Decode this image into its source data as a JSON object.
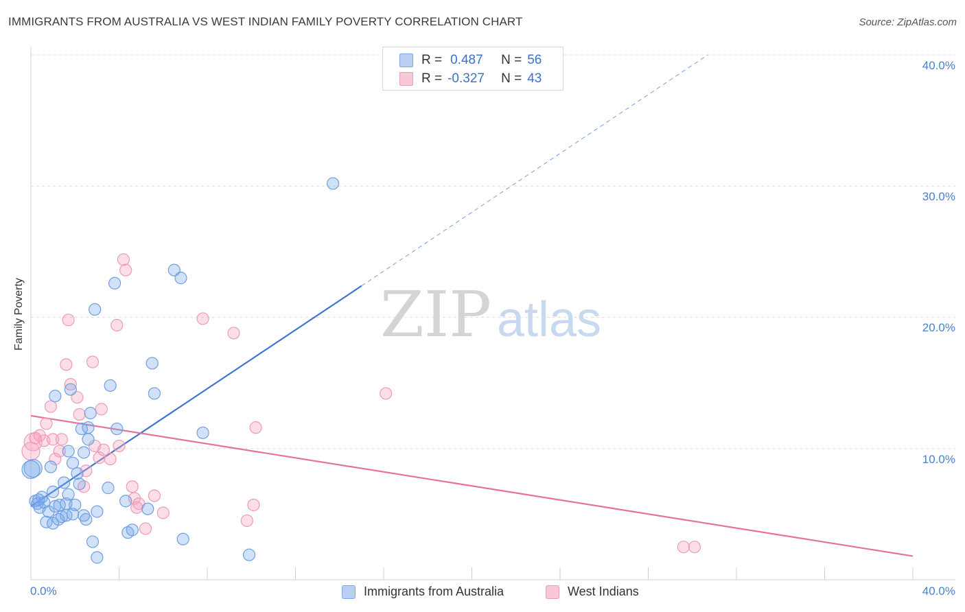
{
  "header": {
    "title": "IMMIGRANTS FROM AUSTRALIA VS WEST INDIAN FAMILY POVERTY CORRELATION CHART",
    "source": "Source: ZipAtlas.com"
  },
  "legend": {
    "r_label": "R =",
    "n_label": "N =",
    "rows": [
      {
        "r": "0.487",
        "n": "56"
      },
      {
        "r": "-0.327",
        "n": "43"
      }
    ]
  },
  "watermark": {
    "zip": "ZIP",
    "atlas": "atlas"
  },
  "colors": {
    "blue": "#3a76d0",
    "blue_fill": "rgba(120,170,235,0.35)",
    "pink": "#e8709a",
    "pink_fill": "rgba(245,160,190,0.35)",
    "grid": "#dcdcdc",
    "tick_text": "#4a7fd0"
  },
  "chart_data": {
    "type": "scatter",
    "title": "IMMIGRANTS FROM AUSTRALIA VS WEST INDIAN FAMILY POVERTY CORRELATION CHART",
    "xlabel": "",
    "ylabel": "Family Poverty",
    "xlim": [
      0,
      40
    ],
    "ylim": [
      0,
      40
    ],
    "x_tick_labels": [
      "0.0%",
      "40.0%"
    ],
    "y_tick_labels": [
      "10.0%",
      "20.0%",
      "30.0%",
      "40.0%"
    ],
    "y_ticks": [
      10,
      20,
      30,
      40
    ],
    "series": [
      {
        "name": "Immigrants from Australia",
        "color": "blue",
        "r": 0.487,
        "n": 56,
        "trend": {
          "x0": 0,
          "y0": 5.6,
          "x1": 15.0,
          "y1": 22.4,
          "dash_to_x": 30.7,
          "dash_to_y": 40.0
        },
        "points": [
          [
            0.1,
            8.5
          ],
          [
            0.2,
            6.0
          ],
          [
            0.3,
            5.8
          ],
          [
            0.4,
            5.5
          ],
          [
            0.5,
            6.3
          ],
          [
            0.6,
            5.9
          ],
          [
            0.7,
            4.4
          ],
          [
            0.8,
            5.2
          ],
          [
            0.9,
            8.6
          ],
          [
            1.0,
            6.7
          ],
          [
            1.0,
            4.3
          ],
          [
            1.1,
            5.6
          ],
          [
            1.1,
            14.0
          ],
          [
            1.3,
            5.7
          ],
          [
            1.4,
            4.8
          ],
          [
            1.5,
            7.4
          ],
          [
            1.6,
            5.8
          ],
          [
            1.6,
            4.9
          ],
          [
            1.7,
            6.5
          ],
          [
            1.7,
            9.8
          ],
          [
            1.8,
            14.5
          ],
          [
            1.9,
            8.9
          ],
          [
            1.9,
            5.0
          ],
          [
            2.0,
            5.7
          ],
          [
            2.1,
            8.1
          ],
          [
            2.2,
            7.3
          ],
          [
            2.3,
            11.5
          ],
          [
            2.4,
            9.7
          ],
          [
            2.4,
            4.9
          ],
          [
            2.5,
            4.6
          ],
          [
            2.6,
            11.6
          ],
          [
            2.6,
            10.7
          ],
          [
            2.7,
            12.7
          ],
          [
            2.8,
            2.9
          ],
          [
            2.9,
            20.6
          ],
          [
            3.0,
            5.2
          ],
          [
            3.0,
            1.7
          ],
          [
            3.5,
            7.0
          ],
          [
            3.6,
            14.8
          ],
          [
            3.8,
            22.6
          ],
          [
            3.9,
            11.5
          ],
          [
            4.3,
            6.0
          ],
          [
            4.4,
            3.6
          ],
          [
            4.6,
            3.8
          ],
          [
            5.3,
            5.4
          ],
          [
            5.6,
            14.2
          ],
          [
            5.5,
            16.5
          ],
          [
            6.5,
            23.6
          ],
          [
            6.8,
            23.0
          ],
          [
            6.9,
            3.1
          ],
          [
            7.8,
            11.2
          ],
          [
            9.9,
            1.9
          ],
          [
            13.7,
            30.2
          ],
          [
            0.0,
            8.4
          ],
          [
            0.35,
            6.1
          ],
          [
            1.25,
            4.6
          ]
        ]
      },
      {
        "name": "West Indians",
        "color": "pink",
        "r": -0.327,
        "n": 43,
        "trend": {
          "x0": 0,
          "y0": 12.5,
          "x1": 40,
          "y1": 1.8
        },
        "points": [
          [
            0.0,
            9.8
          ],
          [
            0.1,
            10.5
          ],
          [
            0.2,
            10.8
          ],
          [
            0.4,
            11.0
          ],
          [
            0.6,
            10.6
          ],
          [
            0.7,
            11.9
          ],
          [
            0.9,
            13.2
          ],
          [
            1.0,
            10.7
          ],
          [
            1.1,
            9.2
          ],
          [
            1.3,
            9.8
          ],
          [
            1.4,
            10.7
          ],
          [
            1.6,
            16.4
          ],
          [
            1.7,
            19.8
          ],
          [
            1.8,
            14.9
          ],
          [
            2.1,
            13.9
          ],
          [
            2.2,
            12.6
          ],
          [
            2.4,
            7.1
          ],
          [
            2.5,
            8.3
          ],
          [
            2.8,
            16.6
          ],
          [
            2.9,
            10.2
          ],
          [
            3.1,
            9.3
          ],
          [
            3.2,
            13.0
          ],
          [
            3.3,
            9.9
          ],
          [
            3.6,
            9.2
          ],
          [
            3.9,
            19.4
          ],
          [
            4.0,
            10.2
          ],
          [
            4.2,
            24.4
          ],
          [
            4.3,
            23.6
          ],
          [
            4.6,
            7.1
          ],
          [
            4.7,
            6.2
          ],
          [
            4.8,
            5.5
          ],
          [
            4.9,
            5.8
          ],
          [
            5.2,
            3.9
          ],
          [
            5.6,
            6.4
          ],
          [
            6.0,
            5.1
          ],
          [
            7.8,
            19.9
          ],
          [
            9.2,
            18.8
          ],
          [
            9.8,
            4.5
          ],
          [
            10.1,
            5.7
          ],
          [
            10.2,
            11.6
          ],
          [
            16.1,
            14.2
          ],
          [
            29.6,
            2.5
          ],
          [
            30.1,
            2.5
          ]
        ]
      }
    ]
  },
  "bottom_legend": {
    "items": [
      "Immigrants from Australia",
      "West Indians"
    ]
  }
}
